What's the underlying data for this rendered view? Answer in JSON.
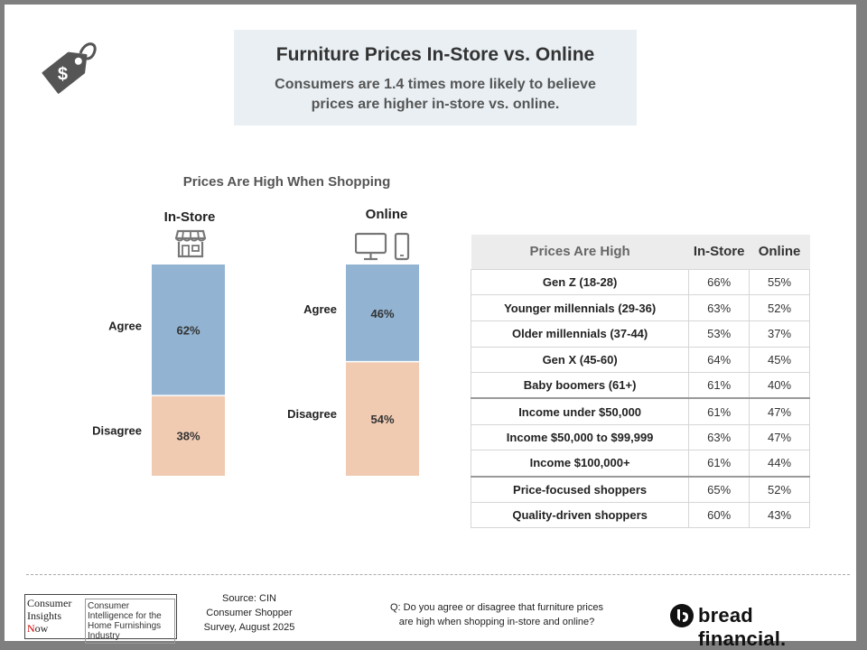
{
  "header": {
    "title": "Furniture Prices In-Store vs. Online",
    "subtitle": "Consumers are 1.4 times more likely to believe prices are higher in-store vs. online."
  },
  "icons": {
    "price_tag": "price-tag-dollar-icon",
    "store": "store-icon",
    "devices": "desktop-and-phone-icon"
  },
  "colors": {
    "agree": "#92b3d2",
    "disagree": "#f0cbb2",
    "accent_bg": "#e9eff3"
  },
  "chart_data": {
    "type": "bar",
    "stacked": true,
    "title": "Prices Are High When Shopping",
    "categories": [
      "In-Store",
      "Online"
    ],
    "series": [
      {
        "name": "Agree",
        "values": [
          62,
          46
        ],
        "labels": [
          "62%",
          "46%"
        ]
      },
      {
        "name": "Disagree",
        "values": [
          38,
          54
        ],
        "labels": [
          "38%",
          "54%"
        ]
      }
    ],
    "ylim": [
      0,
      100
    ]
  },
  "table": {
    "headers": [
      "Prices Are High",
      "In-Store",
      "Online"
    ],
    "rows": [
      {
        "label": "Gen Z (18-28)",
        "instore": "66%",
        "online": "55%"
      },
      {
        "label": "Younger millennials (29-36)",
        "instore": "63%",
        "online": "52%"
      },
      {
        "label": "Older millennials (37-44)",
        "instore": "53%",
        "online": "37%"
      },
      {
        "label": "Gen X (45-60)",
        "instore": "64%",
        "online": "45%"
      },
      {
        "label": "Baby boomers (61+)",
        "instore": "61%",
        "online": "40%"
      },
      {
        "label": "Income under $50,000",
        "instore": "61%",
        "online": "47%"
      },
      {
        "label": "Income $50,000 to $99,999",
        "instore": "63%",
        "online": "47%"
      },
      {
        "label": "Income $100,000+",
        "instore": "61%",
        "online": "44%"
      },
      {
        "label": "Price-focused shoppers",
        "instore": "65%",
        "online": "52%"
      },
      {
        "label": "Quality-driven shoppers",
        "instore": "60%",
        "online": "43%"
      }
    ]
  },
  "footer": {
    "cin_logo": {
      "line1": "Consumer",
      "line2": "Insights",
      "line3_n": "N",
      "line3_rest": "ow",
      "right": "Consumer Intelligence for the Home Furnishings Industry"
    },
    "source_lines": [
      "Source: CIN",
      "Consumer Shopper",
      "Survey, August 2025"
    ],
    "question_lines": [
      "Q: Do you agree or disagree that furniture prices",
      "are high when shopping in-store and online?"
    ],
    "brand": "bread financial."
  }
}
